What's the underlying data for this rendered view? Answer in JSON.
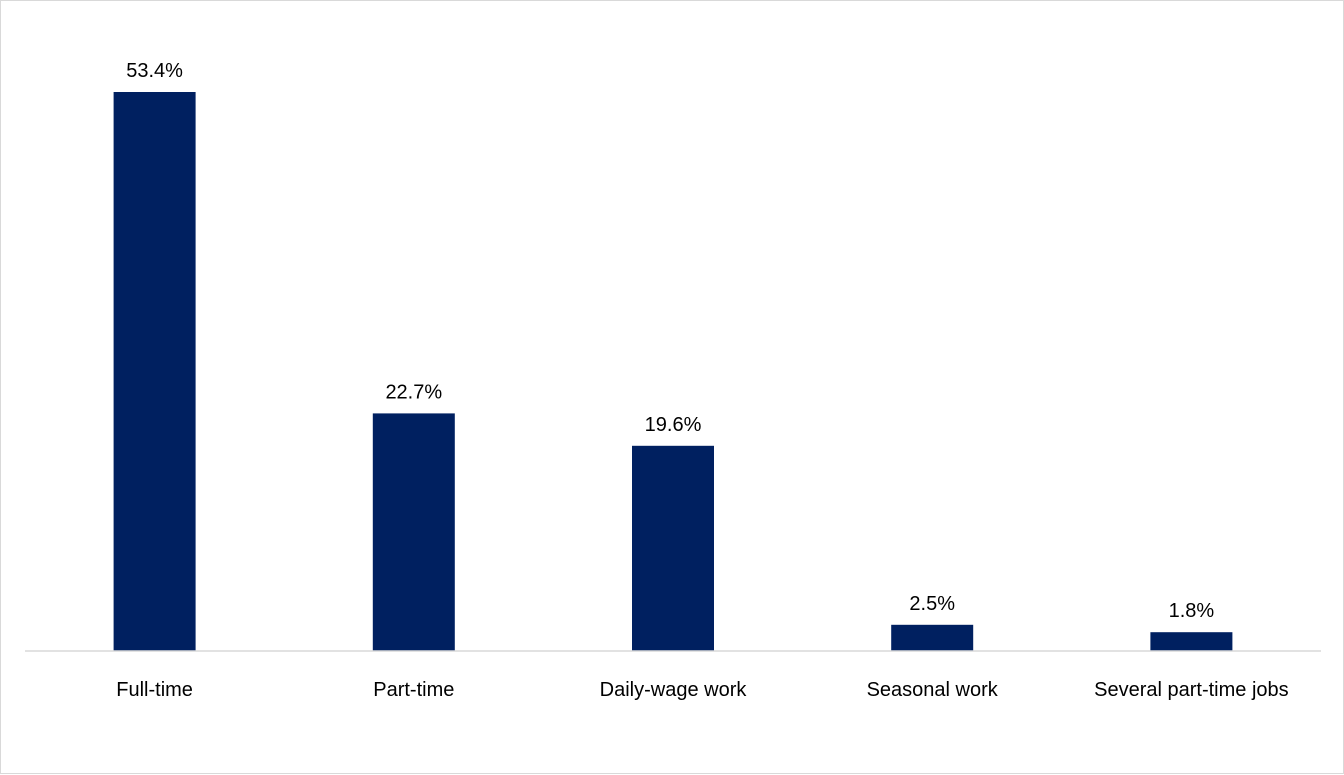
{
  "chart_data": {
    "type": "bar",
    "categories": [
      "Full-time",
      "Part-time",
      "Daily-wage work",
      "Seasonal work",
      "Several part-time jobs"
    ],
    "values": [
      53.4,
      22.7,
      19.6,
      2.5,
      1.8
    ],
    "value_labels": [
      "53.4%",
      "22.7%",
      "19.6%",
      "2.5%",
      "1.8%"
    ],
    "title": "",
    "xlabel": "",
    "ylabel": "",
    "ylim": [
      0,
      53.4
    ],
    "grid": false,
    "legend": "none",
    "colors": {
      "bar": "#002060",
      "axis": "#d9d9d9",
      "text": "#000000"
    }
  }
}
